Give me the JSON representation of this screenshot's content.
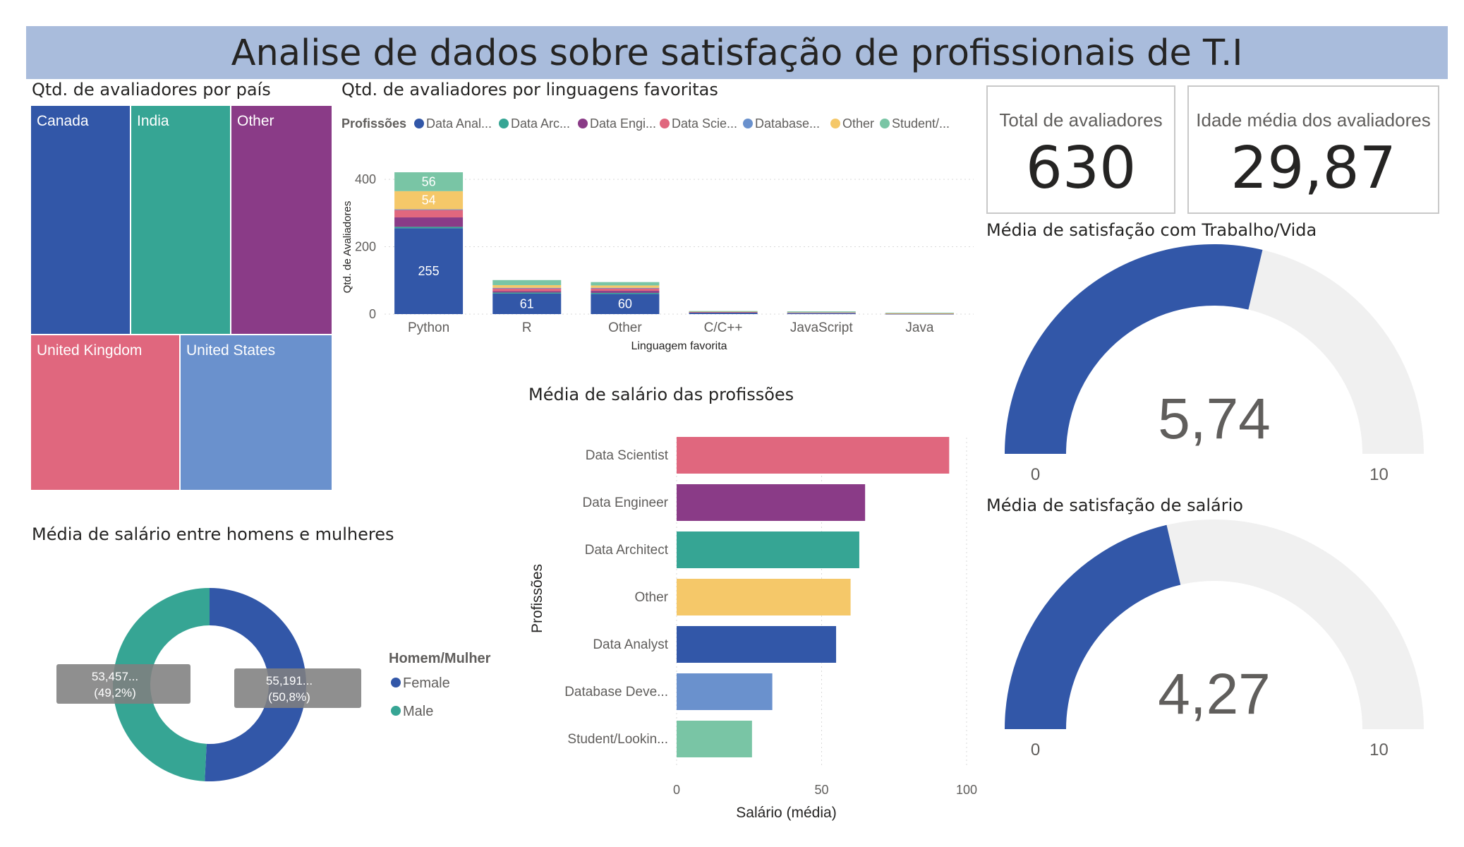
{
  "title": "Analise de dados sobre satisfação de profissionais de T.I",
  "colors": {
    "data_analyst": "#3257a8",
    "data_architect": "#36a594",
    "data_engineer": "#8a3b87",
    "data_scientist": "#e0677e",
    "database_dev": "#6a91cd",
    "other": "#f5c869",
    "student": "#79c5a5",
    "gauge_track": "#f0f0f0"
  },
  "treemap": {
    "title": "Qtd. de avaliadores por país",
    "items": [
      {
        "label": "Canada",
        "color": "#3257a8"
      },
      {
        "label": "India",
        "color": "#36a594"
      },
      {
        "label": "Other",
        "color": "#8a3b87"
      },
      {
        "label": "United Kingdom",
        "color": "#e0677e"
      },
      {
        "label": "United States",
        "color": "#6a91cd"
      }
    ]
  },
  "cards": {
    "total_label": "Total de avaliadores",
    "total_value": "630",
    "age_label": "Idade média dos avaliadores",
    "age_value": "29,87"
  },
  "gauges": [
    {
      "title": "Média de satisfação com Trabalho/Vida",
      "value": 5.74,
      "value_label": "5,74",
      "min": 0,
      "max": 10,
      "min_label": "0",
      "max_label": "10"
    },
    {
      "title": "Média de satisfação de salário",
      "value": 4.27,
      "value_label": "4,27",
      "min": 0,
      "max": 10,
      "min_label": "0",
      "max_label": "10"
    }
  ],
  "chart_data": [
    {
      "type": "bar",
      "stacked": true,
      "title": "Qtd. de avaliadores por linguagens favoritas",
      "legend_title": "Profissões",
      "legend_position": "top-left",
      "legend_items": [
        "Data Anal...",
        "Data Arc...",
        "Data Engi...",
        "Data Scie...",
        "Database...",
        "Other",
        "Student/..."
      ],
      "xlabel": "Linguagem favorita",
      "ylabel": "Qtd. de Avaliadores",
      "ylim": [
        0,
        440
      ],
      "yticks": [
        "0",
        "200",
        "400"
      ],
      "categories": [
        "Python",
        "R",
        "Other",
        "C/C++",
        "JavaScript",
        "Java"
      ],
      "series": [
        {
          "name": "Data Anal...",
          "color": "#3257a8",
          "values": [
            255,
            61,
            60,
            5,
            2,
            1
          ],
          "labels": [
            "255",
            "61",
            "60",
            "",
            "",
            ""
          ]
        },
        {
          "name": "Data Arc...",
          "color": "#36a594",
          "values": [
            4,
            3,
            3,
            0,
            0,
            0
          ],
          "labels": [
            "",
            "",
            "",
            "",
            "",
            ""
          ]
        },
        {
          "name": "Data Engi...",
          "color": "#8a3b87",
          "values": [
            28,
            4,
            6,
            1,
            0,
            0
          ],
          "labels": [
            "",
            "",
            "",
            "",
            "",
            ""
          ]
        },
        {
          "name": "Data Scie...",
          "color": "#e0677e",
          "values": [
            22,
            9,
            8,
            1,
            2,
            1
          ],
          "labels": [
            "",
            "",
            "",
            "",
            "",
            ""
          ]
        },
        {
          "name": "Database...",
          "color": "#6a91cd",
          "values": [
            2,
            1,
            1,
            0,
            1,
            0
          ],
          "labels": [
            "",
            "",
            "",
            "",
            "",
            ""
          ]
        },
        {
          "name": "Other",
          "color": "#f5c869",
          "values": [
            54,
            8,
            7,
            1,
            2,
            1
          ],
          "labels": [
            "54",
            "",
            "",
            "",
            "",
            ""
          ]
        },
        {
          "name": "Student/...",
          "color": "#79c5a5",
          "values": [
            56,
            15,
            10,
            1,
            1,
            1
          ],
          "labels": [
            "56",
            "",
            "",
            "",
            "",
            ""
          ]
        }
      ],
      "grid": true
    },
    {
      "type": "bar",
      "orientation": "horizontal",
      "title": "Média de salário das profissões",
      "xlabel": "Salário (média)",
      "ylabel": "Profissões",
      "xlim": [
        0,
        100
      ],
      "xticks": [
        "0",
        "50",
        "100"
      ],
      "categories": [
        "Data Scientist",
        "Data Engineer",
        "Data Architect",
        "Other",
        "Data Analyst",
        "Database Deve...",
        "Student/Lookin..."
      ],
      "values": [
        94,
        65,
        63,
        60,
        55,
        33,
        26
      ],
      "colors": [
        "#e0677e",
        "#8a3b87",
        "#36a594",
        "#f5c869",
        "#3257a8",
        "#6a91cd",
        "#79c5a5"
      ],
      "grid": true
    },
    {
      "type": "pie",
      "donut": true,
      "title": "Média de salário entre homens e mulheres",
      "legend_title": "Homem/Mulher",
      "legend_position": "right",
      "categories": [
        "Female",
        "Male"
      ],
      "values": [
        55191,
        53457
      ],
      "colors": [
        "#3257a8",
        "#36a594"
      ],
      "data_labels": [
        {
          "value": "55,191...",
          "percent": "(50,8%)"
        },
        {
          "value": "53,457...",
          "percent": "(49,2%)"
        }
      ]
    }
  ]
}
